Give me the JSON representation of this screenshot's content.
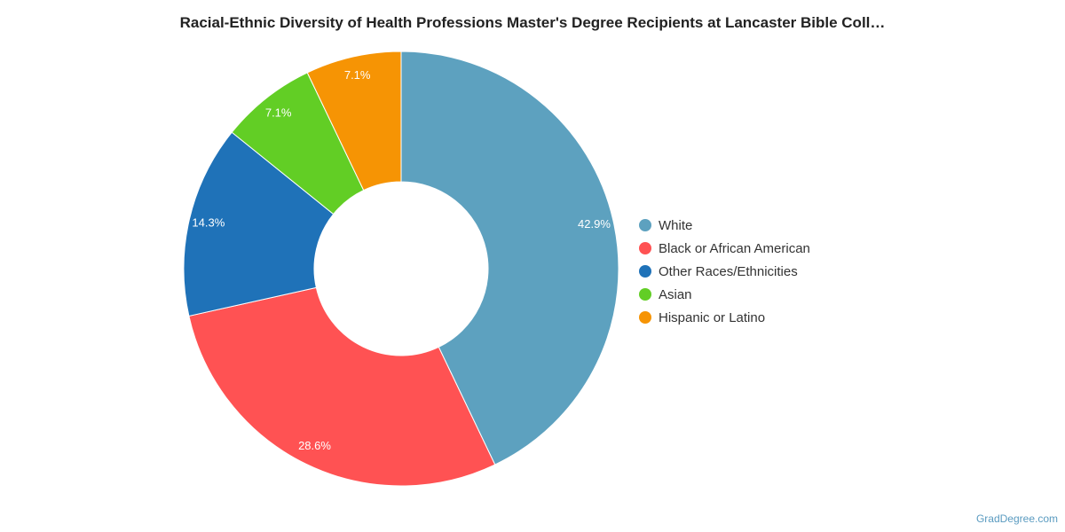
{
  "chart_data": {
    "type": "pie",
    "title": "Racial-Ethnic Diversity of Health Professions Master's Degree Recipients at Lancaster Bible Coll…",
    "donut": true,
    "legend_position": "right",
    "slices": [
      {
        "name": "White",
        "value": 42.9,
        "label": "42.9%",
        "color": "#5da1bf"
      },
      {
        "name": "Black or African American",
        "value": 28.6,
        "label": "28.6%",
        "color": "#ff5253"
      },
      {
        "name": "Other Races/Ethnicities",
        "value": 14.3,
        "label": "14.3%",
        "color": "#1f72b8"
      },
      {
        "name": "Asian",
        "value": 7.1,
        "label": "7.1%",
        "color": "#62ce25"
      },
      {
        "name": "Hispanic or Latino",
        "value": 7.1,
        "label": "7.1%",
        "color": "#f69404"
      }
    ]
  },
  "footer": {
    "credit": "GradDegree.com"
  }
}
